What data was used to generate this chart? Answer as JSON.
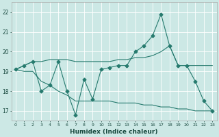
{
  "xlabel": "Humidex (Indice chaleur)",
  "ylabel": "",
  "background_color": "#cce8e5",
  "grid_color": "#b0d8d4",
  "line_color": "#267a6e",
  "xlim": [
    -0.5,
    23.5
  ],
  "ylim": [
    16.5,
    22.5
  ],
  "yticks": [
    17,
    18,
    19,
    20,
    21,
    22
  ],
  "xticks": [
    0,
    1,
    2,
    3,
    4,
    5,
    6,
    7,
    8,
    9,
    10,
    11,
    12,
    13,
    14,
    15,
    16,
    17,
    18,
    19,
    20,
    21,
    22,
    23
  ],
  "line1_x": [
    0,
    1,
    2,
    3,
    4,
    5,
    6,
    7,
    8,
    9,
    10,
    11,
    12,
    13,
    14,
    15,
    16,
    17,
    18,
    19,
    20,
    21,
    22,
    23
  ],
  "line1_y": [
    19.1,
    19.3,
    19.5,
    18.0,
    18.3,
    19.5,
    18.0,
    16.8,
    18.6,
    17.6,
    19.1,
    19.2,
    19.3,
    19.3,
    20.0,
    20.3,
    20.8,
    21.9,
    20.3,
    19.3,
    19.3,
    18.5,
    17.5,
    17.0
  ],
  "line2_x": [
    0,
    1,
    2,
    3,
    4,
    5,
    6,
    7,
    8,
    9,
    10,
    11,
    12,
    13,
    14,
    15,
    16,
    17,
    18,
    19,
    20,
    21,
    22,
    23
  ],
  "line2_y": [
    19.1,
    19.3,
    19.5,
    19.5,
    19.6,
    19.6,
    19.6,
    19.5,
    19.5,
    19.5,
    19.5,
    19.5,
    19.6,
    19.6,
    19.7,
    19.7,
    19.8,
    20.0,
    20.3,
    19.3,
    19.3,
    19.3,
    19.3,
    19.3
  ],
  "line3_x": [
    0,
    1,
    2,
    3,
    4,
    5,
    6,
    7,
    8,
    9,
    10,
    11,
    12,
    13,
    14,
    15,
    16,
    17,
    18,
    19,
    20,
    21,
    22,
    23
  ],
  "line3_y": [
    19.1,
    19.0,
    19.0,
    18.5,
    18.3,
    18.0,
    17.8,
    17.5,
    17.5,
    17.5,
    17.5,
    17.5,
    17.4,
    17.4,
    17.4,
    17.3,
    17.3,
    17.2,
    17.2,
    17.1,
    17.1,
    17.0,
    17.0,
    17.0
  ]
}
